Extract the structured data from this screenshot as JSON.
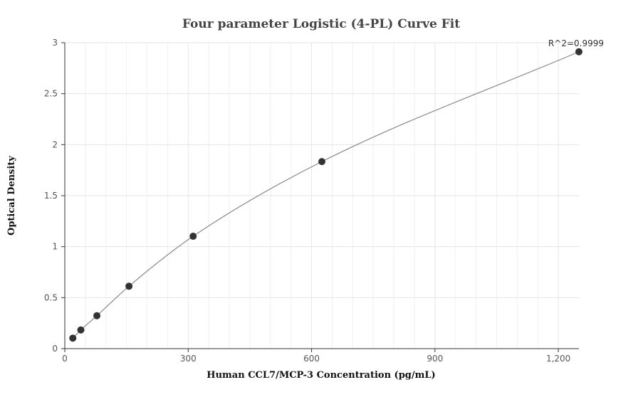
{
  "chart_data": {
    "type": "scatter",
    "title": "Four parameter Logistic (4-PL) Curve Fit",
    "xlabel": "Human CCL7/MCP-3 Concentration (pg/mL)",
    "ylabel": "Optical Density",
    "xlim": [
      0,
      1250
    ],
    "ylim": [
      0,
      3
    ],
    "x_ticks": [
      0,
      300,
      600,
      900,
      1200
    ],
    "x_tick_labels": [
      "0",
      "300",
      "600",
      "900",
      "1,200"
    ],
    "y_ticks": [
      0,
      0.5,
      1,
      1.5,
      2,
      2.5,
      3
    ],
    "y_tick_labels": [
      "0",
      "0.5",
      "1",
      "1.5",
      "2",
      "2.5",
      "3"
    ],
    "grid": true,
    "annotation": "R^2=0.9999",
    "series": [
      {
        "points": [
          {
            "x": 19.5,
            "y": 0.103
          },
          {
            "x": 39,
            "y": 0.183
          },
          {
            "x": 78,
            "y": 0.323
          },
          {
            "x": 156,
            "y": 0.612
          },
          {
            "x": 312,
            "y": 1.102
          },
          {
            "x": 625,
            "y": 1.834
          },
          {
            "x": 1250,
            "y": 2.911
          }
        ]
      }
    ],
    "colors": {
      "points": "#333333",
      "curve": "#888888",
      "grid": "#e6e6e6",
      "axis": "#333333"
    }
  }
}
